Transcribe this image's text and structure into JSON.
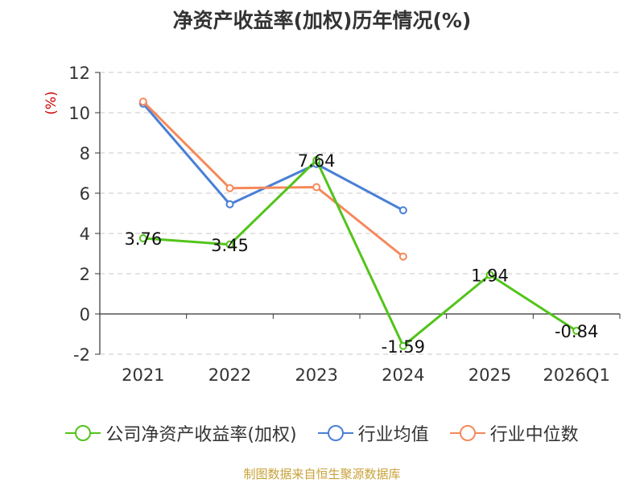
{
  "chart_data": {
    "type": "line",
    "title": "净资产收益率(加权)历年情况(%)",
    "ylabel": "(%)",
    "xlabel": "",
    "categories": [
      "2021",
      "2022",
      "2023",
      "2024",
      "2025",
      "2026Q1"
    ],
    "ylim": [
      -2,
      12
    ],
    "yticks": [
      -2,
      0,
      2,
      4,
      6,
      8,
      10,
      12
    ],
    "grid": true,
    "legend_position": "bottom",
    "series": [
      {
        "name": "公司净资产收益率(加权)",
        "color": "#52c41a",
        "values": [
          3.76,
          3.45,
          7.64,
          -1.59,
          1.94,
          -0.84
        ],
        "labels": [
          "3.76",
          "3.45",
          "7.64",
          "-1.59",
          "1.94",
          "-0.84"
        ]
      },
      {
        "name": "行业均值",
        "color": "#4a7fd6",
        "values": [
          10.45,
          5.45,
          7.45,
          5.15,
          null,
          null
        ]
      },
      {
        "name": "行业中位数",
        "color": "#f5895a",
        "values": [
          10.55,
          6.25,
          6.3,
          2.85,
          null,
          null
        ]
      }
    ]
  },
  "source": "制图数据来自恒生聚源数据库"
}
